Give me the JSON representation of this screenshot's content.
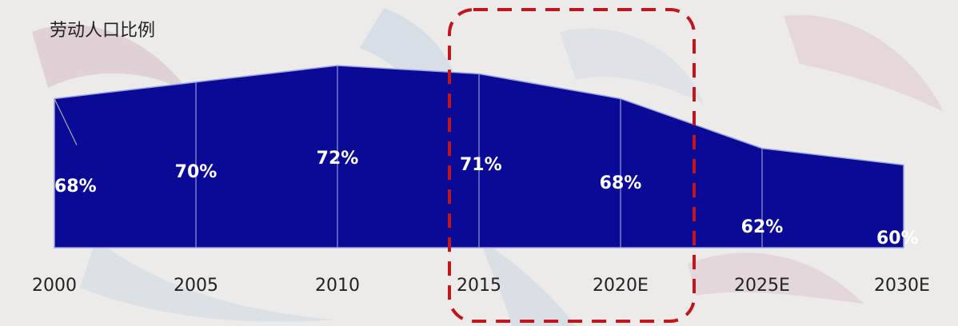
{
  "chart_data": {
    "type": "area",
    "title": "劳动人口比例",
    "categories": [
      "2000",
      "2005",
      "2010",
      "2015",
      "2020E",
      "2025E",
      "2030E"
    ],
    "values": [
      68,
      70,
      72,
      71,
      68,
      62,
      60
    ],
    "data_labels": [
      "68%",
      "70%",
      "72%",
      "71%",
      "68%",
      "62%",
      "60%"
    ],
    "unit": "%",
    "highlight": {
      "from": "2015",
      "to": "2020E",
      "style": "dashed rounded box"
    },
    "colors": {
      "fill": "#0a0a96",
      "label": "#ffffff",
      "highlight": "#c0161e",
      "axis_text": "#222222"
    },
    "grid": false,
    "legend": "none"
  }
}
